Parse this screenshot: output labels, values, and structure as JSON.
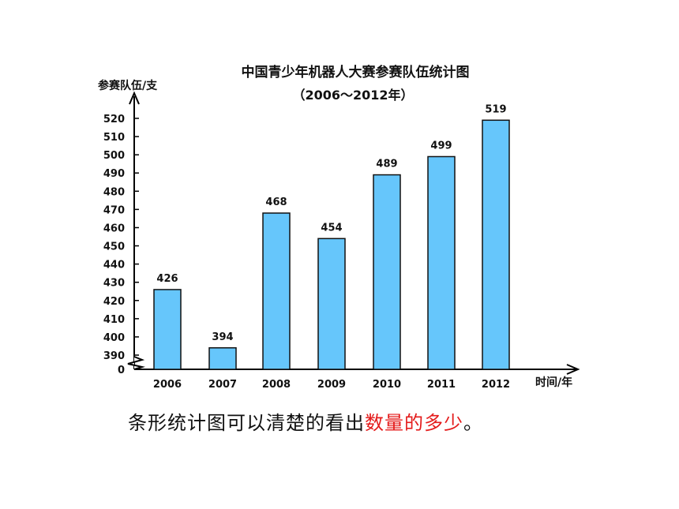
{
  "chart_data": {
    "type": "bar",
    "title": "中国青少年机器人大赛参赛队伍统计图",
    "subtitle": "（2006～2012年）",
    "ylabel": "参赛队伍/支",
    "xlabel": "时间/年",
    "categories": [
      "2006",
      "2007",
      "2008",
      "2009",
      "2010",
      "2011",
      "2012"
    ],
    "values": [
      426,
      394,
      468,
      454,
      489,
      499,
      519
    ],
    "ylim": [
      390,
      520
    ],
    "yticks": [
      "520",
      "510",
      "500",
      "490",
      "480",
      "470",
      "460",
      "450",
      "440",
      "430",
      "420",
      "410",
      "400",
      "390",
      "0"
    ],
    "axis_break": true,
    "bar_color": "#66c6fb",
    "bar_border_color": "#111111"
  },
  "caption": {
    "part1": "条形统计图可以清楚的看出",
    "part2": "数量的多少",
    "part3": "。",
    "highlight_color": "#e41b1b"
  }
}
